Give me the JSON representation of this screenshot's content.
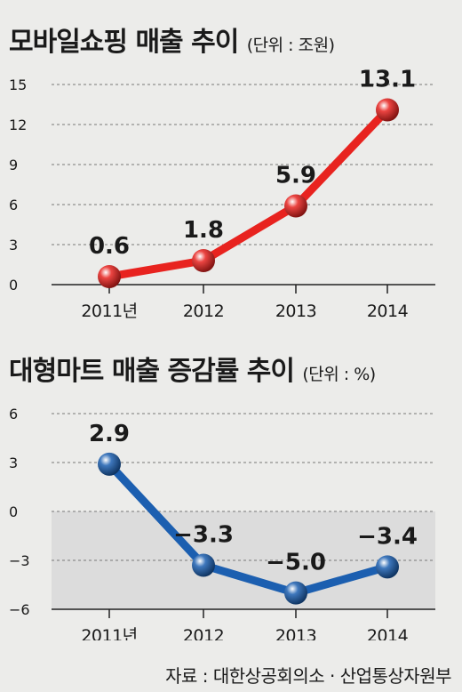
{
  "charts": [
    {
      "title": "모바일쇼핑 매출 추이",
      "unit": "(단위 : 조원)",
      "color": "#e8231f",
      "chart_data": {
        "type": "line",
        "categories": [
          "2011년",
          "2012",
          "2013",
          "2014"
        ],
        "values": [
          0.6,
          1.8,
          5.9,
          13.1
        ],
        "data_labels": [
          "0.6",
          "1.8",
          "5.9",
          "13.1"
        ],
        "yticks": [
          0,
          3,
          6,
          9,
          12,
          15
        ],
        "ytick_labels": [
          "0",
          "3",
          "6",
          "9",
          "12",
          "15"
        ],
        "ylim": [
          0,
          15
        ],
        "grid": true,
        "negative_shading": false
      }
    },
    {
      "title": "대형마트 매출 증감률 추이",
      "unit": "(단위 : %)",
      "color": "#1c5fb0",
      "chart_data": {
        "type": "line",
        "categories": [
          "2011년",
          "2012",
          "2013",
          "2014"
        ],
        "values": [
          2.9,
          -3.3,
          -5.0,
          -3.4
        ],
        "data_labels": [
          "2.9",
          "−3.3",
          "−5.0",
          "−3.4"
        ],
        "yticks": [
          -6,
          -3,
          0,
          3,
          6
        ],
        "ytick_labels": [
          "−6",
          "−3",
          "0",
          "3",
          "6"
        ],
        "ylim": [
          -6,
          6
        ],
        "grid": true,
        "negative_shading": true
      }
    }
  ],
  "source": "자료 : 대한상공회의소 · 산업통상자원부"
}
